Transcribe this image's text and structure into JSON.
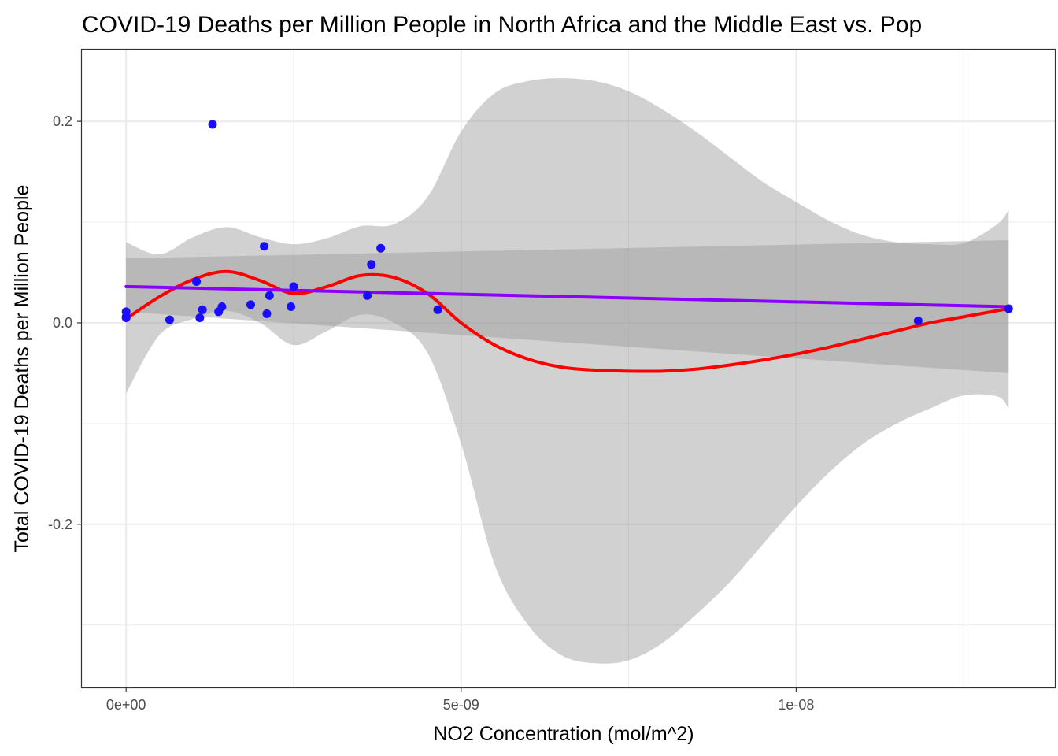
{
  "chart_data": {
    "type": "scatter",
    "title": "COVID-19 Deaths per Million People in North Africa and the Middle East vs. Pop",
    "xlabel": "NO2 Concentration (mol/m^2)",
    "ylabel": "Total COVID-19 Deaths per Million People",
    "xlim": [
      -6.6e-10,
      1.386e-08
    ],
    "ylim": [
      -0.362,
      0.272
    ],
    "x_ticks": [
      {
        "value": 0,
        "label": "0e+00"
      },
      {
        "value": 5e-09,
        "label": "5e-09"
      },
      {
        "value": 1e-08,
        "label": "1e-08"
      }
    ],
    "y_ticks": [
      {
        "value": 0.2,
        "label": "0.2"
      },
      {
        "value": 0.0,
        "label": "0.0"
      },
      {
        "value": -0.2,
        "label": "-0.2"
      }
    ],
    "x_minor_ticks": [
      2.5e-09,
      7.5e-09,
      1.25e-08
    ],
    "y_minor_ticks": [
      0.1,
      -0.1,
      -0.3
    ],
    "grid": true,
    "legend": "none",
    "colors": {
      "points": "#1a0dff",
      "linear_fit": "#8b00ff",
      "smooth_fit": "#ff0000",
      "ribbon": "#999999",
      "grid": "#ebebeb",
      "panel_border": "#333333",
      "tick_text": "#4d4d4d"
    },
    "points": [
      {
        "x": 0.0,
        "y": 0.011
      },
      {
        "x": 0.0,
        "y": 0.005
      },
      {
        "x": 0.0,
        "y": 0.006
      },
      {
        "x": 6.5e-10,
        "y": 0.003
      },
      {
        "x": 1.05e-09,
        "y": 0.041
      },
      {
        "x": 1.1e-09,
        "y": 0.005
      },
      {
        "x": 1.14e-09,
        "y": 0.013
      },
      {
        "x": 1.29e-09,
        "y": 0.197
      },
      {
        "x": 1.38e-09,
        "y": 0.011
      },
      {
        "x": 1.43e-09,
        "y": 0.016
      },
      {
        "x": 1.86e-09,
        "y": 0.018
      },
      {
        "x": 2.06e-09,
        "y": 0.076
      },
      {
        "x": 2.1e-09,
        "y": 0.009
      },
      {
        "x": 2.14e-09,
        "y": 0.027
      },
      {
        "x": 2.46e-09,
        "y": 0.016
      },
      {
        "x": 2.5e-09,
        "y": 0.036
      },
      {
        "x": 3.6e-09,
        "y": 0.027
      },
      {
        "x": 3.66e-09,
        "y": 0.058
      },
      {
        "x": 3.8e-09,
        "y": 0.074
      },
      {
        "x": 4.65e-09,
        "y": 0.013
      },
      {
        "x": 1.182e-08,
        "y": 0.002
      },
      {
        "x": 1.317e-08,
        "y": 0.014
      }
    ],
    "linear_fit": {
      "x": [
        0.0,
        1.317e-08
      ],
      "y": [
        0.036,
        0.016
      ],
      "ci_lower": [
        0.011,
        -0.05
      ],
      "ci_upper": [
        0.064,
        0.082
      ]
    },
    "smooth_fit": {
      "x": [
        0.0,
        5e-10,
        1e-09,
        1.5e-09,
        2e-09,
        2.5e-09,
        3e-09,
        3.5e-09,
        4e-09,
        4.5e-09,
        5e-09,
        5.5e-09,
        6e-09,
        6.5e-09,
        7e-09,
        7.5e-09,
        8e-09,
        8.5e-09,
        9e-09,
        9.5e-09,
        1e-08,
        1.05e-08,
        1.1e-08,
        1.15e-08,
        1.2e-08,
        1.25e-08,
        1.3e-08,
        1.317e-08
      ],
      "y": [
        0.004,
        0.026,
        0.043,
        0.051,
        0.042,
        0.029,
        0.036,
        0.047,
        0.045,
        0.029,
        0.0,
        -0.022,
        -0.036,
        -0.044,
        -0.047,
        -0.048,
        -0.048,
        -0.046,
        -0.042,
        -0.037,
        -0.031,
        -0.024,
        -0.016,
        -0.008,
        0.0,
        0.006,
        0.012,
        0.014
      ],
      "ci_lower": [
        -0.07,
        -0.012,
        0.004,
        0.012,
        0.0,
        -0.022,
        -0.008,
        0.008,
        0.0,
        -0.03,
        -0.12,
        -0.24,
        -0.3,
        -0.33,
        -0.338,
        -0.335,
        -0.318,
        -0.29,
        -0.258,
        -0.22,
        -0.182,
        -0.148,
        -0.12,
        -0.1,
        -0.085,
        -0.072,
        -0.073,
        -0.085
      ],
      "ci_upper": [
        0.08,
        0.068,
        0.085,
        0.095,
        0.085,
        0.078,
        0.084,
        0.096,
        0.098,
        0.125,
        0.19,
        0.228,
        0.24,
        0.243,
        0.24,
        0.23,
        0.212,
        0.19,
        0.165,
        0.14,
        0.12,
        0.101,
        0.087,
        0.08,
        0.078,
        0.079,
        0.098,
        0.112
      ]
    }
  }
}
